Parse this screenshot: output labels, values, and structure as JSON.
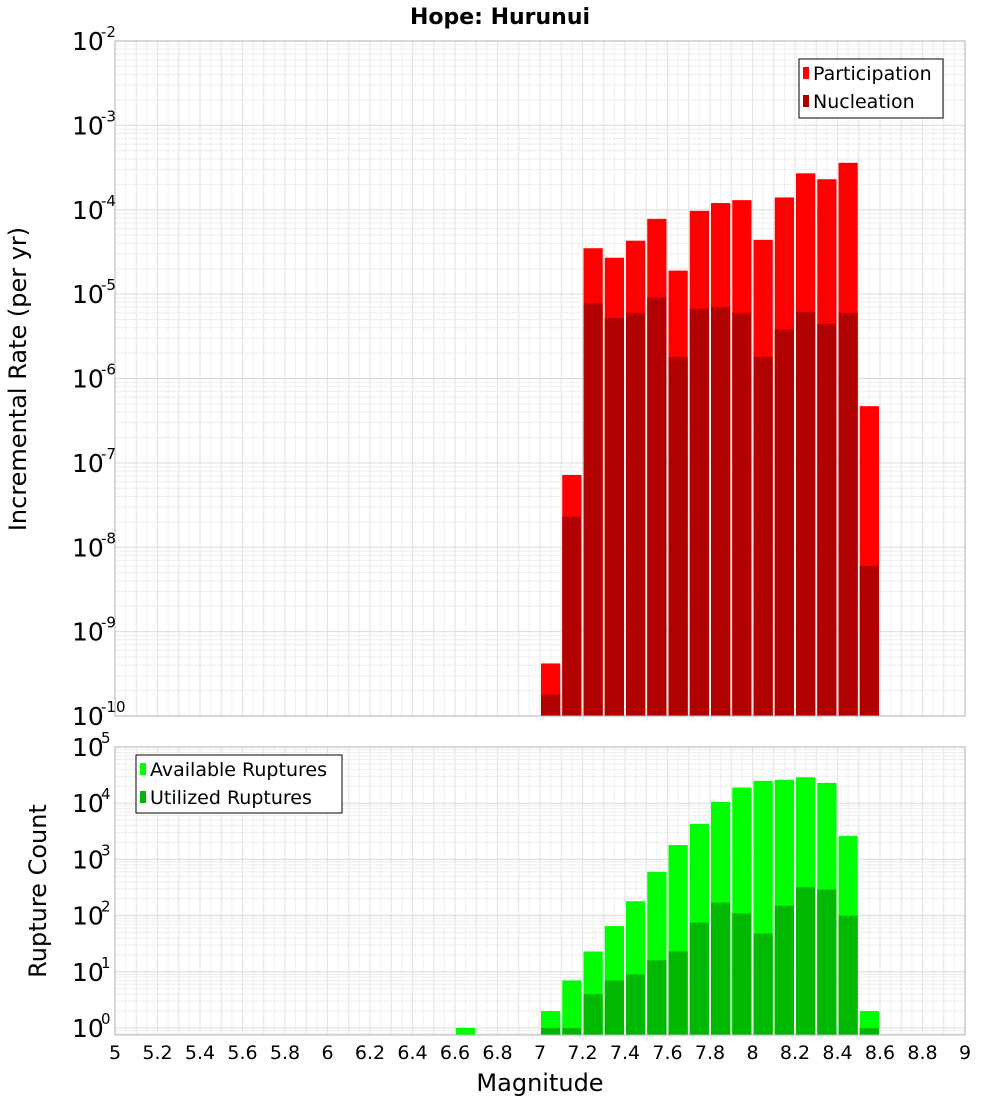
{
  "title": "Hope: Hurunui",
  "chart_data": [
    {
      "type": "bar",
      "ylabel": "Incremental Rate (per yr)",
      "yscale": "log",
      "ylim": [
        1e-10,
        0.01
      ],
      "xlim": [
        5,
        9
      ],
      "grid": true,
      "legend_position": "top-right",
      "bin_width": 0.1,
      "y_ticks": [
        {
          "base": "10",
          "exp": "-10"
        },
        {
          "base": "10",
          "exp": "-9"
        },
        {
          "base": "10",
          "exp": "-8"
        },
        {
          "base": "10",
          "exp": "-7"
        },
        {
          "base": "10",
          "exp": "-6"
        },
        {
          "base": "10",
          "exp": "-5"
        },
        {
          "base": "10",
          "exp": "-4"
        },
        {
          "base": "10",
          "exp": "-3"
        },
        {
          "base": "10",
          "exp": "-2"
        }
      ],
      "series": [
        {
          "name": "Participation",
          "color": "#ff0000",
          "x": [
            7.05,
            7.15,
            7.25,
            7.35,
            7.45,
            7.55,
            7.65,
            7.75,
            7.85,
            7.95,
            8.05,
            8.15,
            8.25,
            8.35,
            8.45,
            8.55
          ],
          "values": [
            4.2e-10,
            7.2e-08,
            3.5e-05,
            2.7e-05,
            4.3e-05,
            7.8e-05,
            1.9e-05,
            9.7e-05,
            0.00012,
            0.00013,
            4.4e-05,
            0.00014,
            0.00027,
            0.00023,
            0.00036,
            4.7e-07
          ]
        },
        {
          "name": "Nucleation",
          "color": "#b00000",
          "x": [
            7.05,
            7.15,
            7.25,
            7.35,
            7.45,
            7.55,
            7.65,
            7.75,
            7.85,
            7.95,
            8.05,
            8.15,
            8.25,
            8.35,
            8.45,
            8.55
          ],
          "values": [
            1.8e-10,
            2.3e-08,
            7.8e-06,
            5.2e-06,
            6e-06,
            9.1e-06,
            1.8e-06,
            6.7e-06,
            7e-06,
            6e-06,
            1.8e-06,
            3.8e-06,
            6.1e-06,
            4.4e-06,
            6e-06,
            6e-09
          ]
        }
      ]
    },
    {
      "type": "bar",
      "ylabel": "Rupture Count",
      "xlabel": "Magnitude",
      "yscale": "log",
      "ylim": [
        0.75,
        100000
      ],
      "xlim": [
        5,
        9
      ],
      "grid": true,
      "legend_position": "top-left",
      "bin_width": 0.1,
      "x_ticks": [
        "5",
        "5.2",
        "5.4",
        "5.6",
        "5.8",
        "6",
        "6.2",
        "6.4",
        "6.6",
        "6.8",
        "7",
        "7.2",
        "7.4",
        "7.6",
        "7.8",
        "8",
        "8.2",
        "8.4",
        "8.6",
        "8.8",
        "9"
      ],
      "y_ticks": [
        {
          "base": "10",
          "exp": "0"
        },
        {
          "base": "10",
          "exp": "1"
        },
        {
          "base": "10",
          "exp": "2"
        },
        {
          "base": "10",
          "exp": "3"
        },
        {
          "base": "10",
          "exp": "4"
        },
        {
          "base": "10",
          "exp": "5"
        }
      ],
      "series": [
        {
          "name": "Available Ruptures",
          "color": "#00ff00",
          "x": [
            6.65,
            7.05,
            7.15,
            7.25,
            7.35,
            7.45,
            7.55,
            7.65,
            7.75,
            7.85,
            7.95,
            8.05,
            8.15,
            8.25,
            8.35,
            8.45,
            8.55
          ],
          "values": [
            1,
            2,
            7,
            23,
            65,
            180,
            600,
            1800,
            4300,
            10500,
            19000,
            25000,
            26000,
            29000,
            23000,
            2600,
            2
          ]
        },
        {
          "name": "Utilized Ruptures",
          "color": "#00b800",
          "x": [
            7.05,
            7.15,
            7.25,
            7.35,
            7.45,
            7.55,
            7.65,
            7.75,
            7.85,
            7.95,
            8.05,
            8.15,
            8.25,
            8.35,
            8.45,
            8.55
          ],
          "values": [
            1,
            1,
            4,
            7,
            9,
            16,
            23,
            75,
            170,
            110,
            48,
            150,
            320,
            290,
            100,
            1
          ]
        }
      ]
    }
  ]
}
